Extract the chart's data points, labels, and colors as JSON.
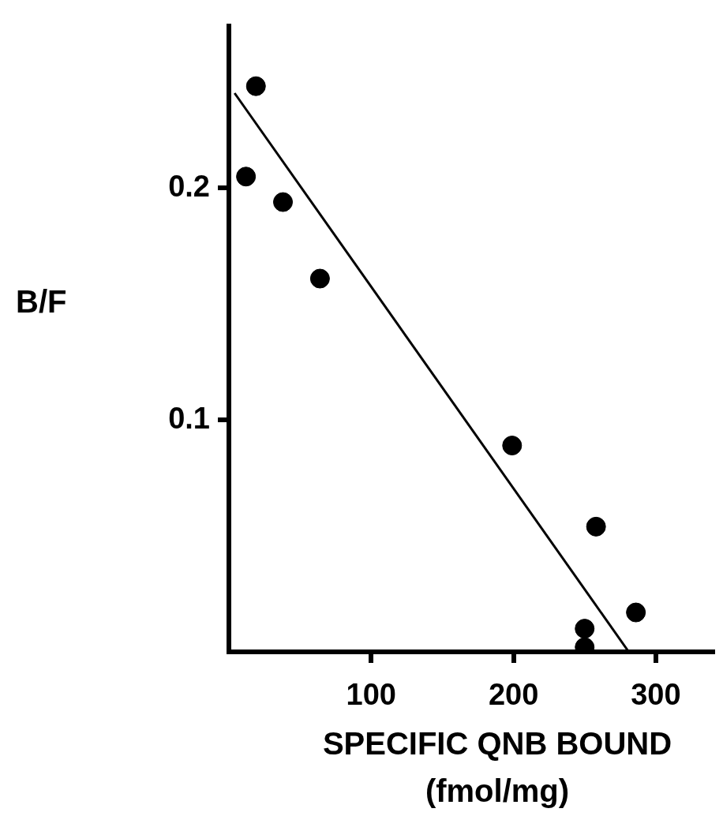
{
  "chart_data": {
    "type": "scatter",
    "xlabel": "SPECIFIC QNB BOUND\n(fmol/mg)",
    "ylabel": "B/F",
    "xlim": [
      0,
      340
    ],
    "xticks": [
      100,
      200,
      300
    ],
    "ylim": [
      0,
      0.27
    ],
    "yticks": [
      0.1,
      0.2
    ],
    "x": [
      19,
      12,
      38,
      64,
      199,
      258,
      286,
      250,
      250
    ],
    "series": [
      {
        "marker": "circle",
        "color": "#000000",
        "values": [
          0.244,
          0.205,
          0.194,
          0.161,
          0.089,
          0.054,
          0.017,
          0.01,
          0.002
        ]
      },
      {
        "type": "line",
        "color": "#000000",
        "x": [
          4,
          281
        ],
        "values": [
          0.241,
          0
        ]
      }
    ],
    "grid": false,
    "legend": false
  }
}
